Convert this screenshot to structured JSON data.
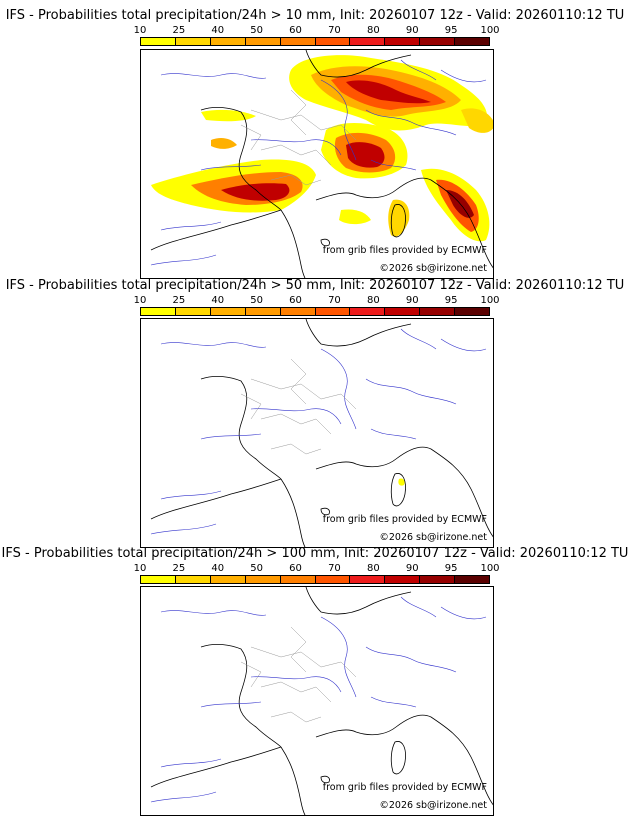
{
  "colorbar": {
    "levels": [
      "10",
      "25",
      "40",
      "50",
      "60",
      "70",
      "80",
      "90",
      "95",
      "100"
    ],
    "colors": [
      "#ffff00",
      "#ffd700",
      "#ffb000",
      "#ff9a00",
      "#ff7f00",
      "#ff5500",
      "#ee1c1c",
      "#c00000",
      "#960000",
      "#5a0000"
    ]
  },
  "panels": [
    {
      "title": "IFS - Probabilities total precipitation/24h > 10 mm, Init: 20260107 12z - Valid: 20260110:12 TU"
    },
    {
      "title": "IFS - Probabilities total precipitation/24h > 50 mm, Init: 20260107 12z - Valid: 20260110:12 TU"
    },
    {
      "title": "IFS - Probabilities total precipitation/24h > 100 mm, Init: 20260107 12z - Valid: 20260110:12 TU"
    }
  ],
  "credits": {
    "source": "from grib files provided by ECMWF",
    "copyright": "©2026 sb@irizone.net"
  },
  "map_colors": {
    "coast": "#000000",
    "rivers": "#3333cc",
    "borders": "#999999"
  }
}
